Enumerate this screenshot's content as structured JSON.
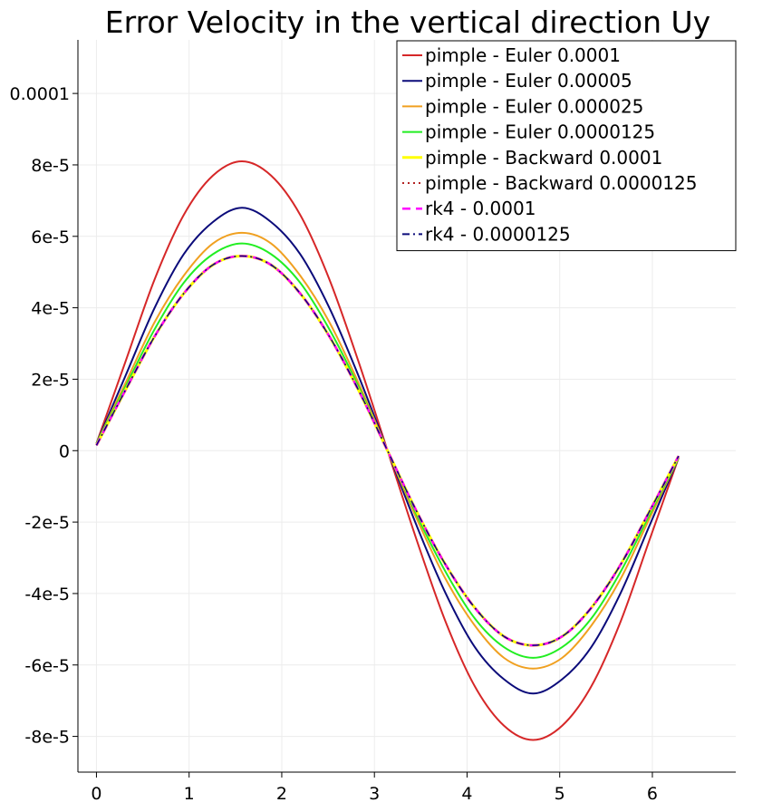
{
  "chart_data": {
    "type": "line",
    "title": "Error Velocity in the vertical direction Uy",
    "xlabel": "",
    "ylabel": "",
    "xlim": [
      -0.2,
      6.9
    ],
    "ylim": [
      -9e-05,
      0.000115
    ],
    "x_ticks": [
      0,
      1,
      2,
      3,
      4,
      5,
      6
    ],
    "x_tick_labels": [
      "0",
      "1",
      "2",
      "3",
      "4",
      "5",
      "6"
    ],
    "y_ticks": [
      -8e-05,
      -6e-05,
      -4e-05,
      -2e-05,
      0,
      2e-05,
      4e-05,
      6e-05,
      8e-05,
      0.0001
    ],
    "y_tick_labels": [
      "-8e-5",
      "-6e-5",
      "-4e-5",
      "-2e-5",
      "0",
      "2e-5",
      "4e-5",
      "6e-5",
      "8e-5",
      "0.0001"
    ],
    "grid": true,
    "legend_position": "top-right",
    "x": [
      0,
      0.3142,
      0.6283,
      0.9425,
      1.2566,
      1.5708,
      1.885,
      2.1991,
      2.5133,
      2.8274,
      3.1416,
      3.4558,
      3.7699,
      4.0841,
      4.3982,
      4.7124,
      5.0265,
      5.3407,
      5.6549,
      5.969,
      6.2832
    ],
    "series": [
      {
        "name": "pimple - Euler 0.0001",
        "color": "#d62728",
        "style": "solid",
        "width": 2,
        "values": [
          2e-06,
          2.5e-05,
          4.8e-05,
          6.6e-05,
          7.7e-05,
          8.1e-05,
          7.7e-05,
          6.6e-05,
          4.8e-05,
          2.5e-05,
          0.0,
          -2.5e-05,
          -4.8e-05,
          -6.6e-05,
          -7.7e-05,
          -8.1e-05,
          -7.7e-05,
          -6.6e-05,
          -4.8e-05,
          -2.5e-05,
          -2e-06
        ]
      },
      {
        "name": "pimple - Euler 0.00005",
        "color": "#0b0b7a",
        "style": "solid",
        "width": 2,
        "values": [
          2e-06,
          2.1e-05,
          4e-05,
          5.5e-05,
          6.4e-05,
          6.8e-05,
          6.4e-05,
          5.5e-05,
          4e-05,
          2.1e-05,
          0.0,
          -2.1e-05,
          -4e-05,
          -5.5e-05,
          -6.4e-05,
          -6.8e-05,
          -6.4e-05,
          -5.5e-05,
          -4e-05,
          -2.1e-05,
          -2e-06
        ]
      },
      {
        "name": "pimple - Euler 0.000025",
        "color": "#f0a020",
        "style": "solid",
        "width": 2,
        "values": [
          2e-06,
          1.9e-05,
          3.6e-05,
          4.9e-05,
          5.8e-05,
          6.1e-05,
          5.8e-05,
          4.9e-05,
          3.6e-05,
          1.9e-05,
          0.0,
          -1.9e-05,
          -3.6e-05,
          -4.9e-05,
          -5.8e-05,
          -6.1e-05,
          -5.8e-05,
          -4.9e-05,
          -3.6e-05,
          -1.9e-05,
          -2e-06
        ]
      },
      {
        "name": "pimple - Euler 0.0000125",
        "color": "#22ee22",
        "style": "solid",
        "width": 2,
        "values": [
          2e-06,
          1.8e-05,
          3.4e-05,
          4.7e-05,
          5.5e-05,
          5.8e-05,
          5.5e-05,
          4.7e-05,
          3.4e-05,
          1.8e-05,
          0.0,
          -1.8e-05,
          -3.4e-05,
          -4.7e-05,
          -5.5e-05,
          -5.8e-05,
          -5.5e-05,
          -4.7e-05,
          -3.4e-05,
          -1.8e-05,
          -2e-06
        ]
      },
      {
        "name": "pimple - Backward 0.0001",
        "color": "#ffff00",
        "style": "solid",
        "width": 3,
        "values": [
          1.5e-06,
          1.7e-05,
          3.2e-05,
          4.4e-05,
          5.2e-05,
          5.45e-05,
          5.2e-05,
          4.4e-05,
          3.2e-05,
          1.7e-05,
          0.0,
          -1.7e-05,
          -3.2e-05,
          -4.4e-05,
          -5.2e-05,
          -5.45e-05,
          -5.2e-05,
          -4.4e-05,
          -3.2e-05,
          -1.7e-05,
          -1.5e-06
        ]
      },
      {
        "name": "pimple - Backward 0.0000125",
        "color": "#b22222",
        "style": "dotted",
        "width": 1.5,
        "values": [
          1.5e-06,
          1.7e-05,
          3.2e-05,
          4.4e-05,
          5.2e-05,
          5.45e-05,
          5.2e-05,
          4.4e-05,
          3.2e-05,
          1.7e-05,
          0.0,
          -1.7e-05,
          -3.2e-05,
          -4.4e-05,
          -5.2e-05,
          -5.45e-05,
          -5.2e-05,
          -4.4e-05,
          -3.2e-05,
          -1.7e-05,
          -1.5e-06
        ]
      },
      {
        "name": "rk4 - 0.0001",
        "color": "#ff00ff",
        "style": "dashed",
        "width": 2.5,
        "values": [
          1.5e-06,
          1.7e-05,
          3.2e-05,
          4.4e-05,
          5.2e-05,
          5.45e-05,
          5.2e-05,
          4.4e-05,
          3.2e-05,
          1.7e-05,
          0.0,
          -1.7e-05,
          -3.2e-05,
          -4.4e-05,
          -5.2e-05,
          -5.45e-05,
          -5.2e-05,
          -4.4e-05,
          -3.2e-05,
          -1.7e-05,
          -1.5e-06
        ]
      },
      {
        "name": "rk4 - 0.0000125",
        "color": "#0b0b7a",
        "style": "dashdot",
        "width": 1.5,
        "values": [
          1.5e-06,
          1.7e-05,
          3.2e-05,
          4.4e-05,
          5.2e-05,
          5.45e-05,
          5.2e-05,
          4.4e-05,
          3.2e-05,
          1.7e-05,
          0.0,
          -1.7e-05,
          -3.2e-05,
          -4.4e-05,
          -5.2e-05,
          -5.45e-05,
          -5.2e-05,
          -4.4e-05,
          -3.2e-05,
          -1.7e-05,
          -1.5e-06
        ]
      }
    ]
  }
}
